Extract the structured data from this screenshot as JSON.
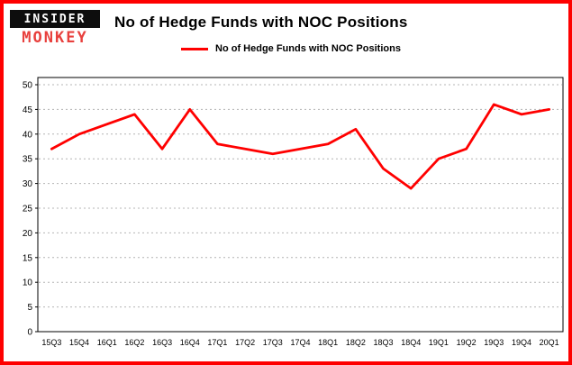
{
  "brand": {
    "line1": "INSIDER",
    "line2": "MONKEY",
    "logo_bg": "#0d0d0d",
    "logo_red": "#e8403d"
  },
  "header": {
    "title": "No of Hedge Funds with NOC Positions"
  },
  "legend": {
    "label": "No of Hedge Funds with NOC Positions",
    "color": "#ff0000"
  },
  "frame": {
    "border_color": "#fe0000"
  },
  "chart_data": {
    "type": "line",
    "title": "No of Hedge Funds with NOC Positions",
    "xlabel": "",
    "ylabel": "",
    "categories": [
      "15Q3",
      "15Q4",
      "16Q1",
      "16Q2",
      "16Q3",
      "16Q4",
      "17Q1",
      "17Q2",
      "17Q3",
      "17Q4",
      "18Q1",
      "18Q2",
      "18Q3",
      "18Q4",
      "19Q1",
      "19Q2",
      "19Q3",
      "19Q4",
      "20Q1"
    ],
    "series": [
      {
        "name": "No of Hedge Funds with NOC Positions",
        "color": "#ff0000",
        "values": [
          37,
          40,
          42,
          44,
          37,
          45,
          38,
          37,
          36,
          37,
          38,
          41,
          33,
          29,
          35,
          37,
          46,
          44,
          45
        ]
      }
    ],
    "ylim": [
      0,
      50
    ],
    "ytick_step": 5,
    "grid": true,
    "legend_position": "top"
  }
}
